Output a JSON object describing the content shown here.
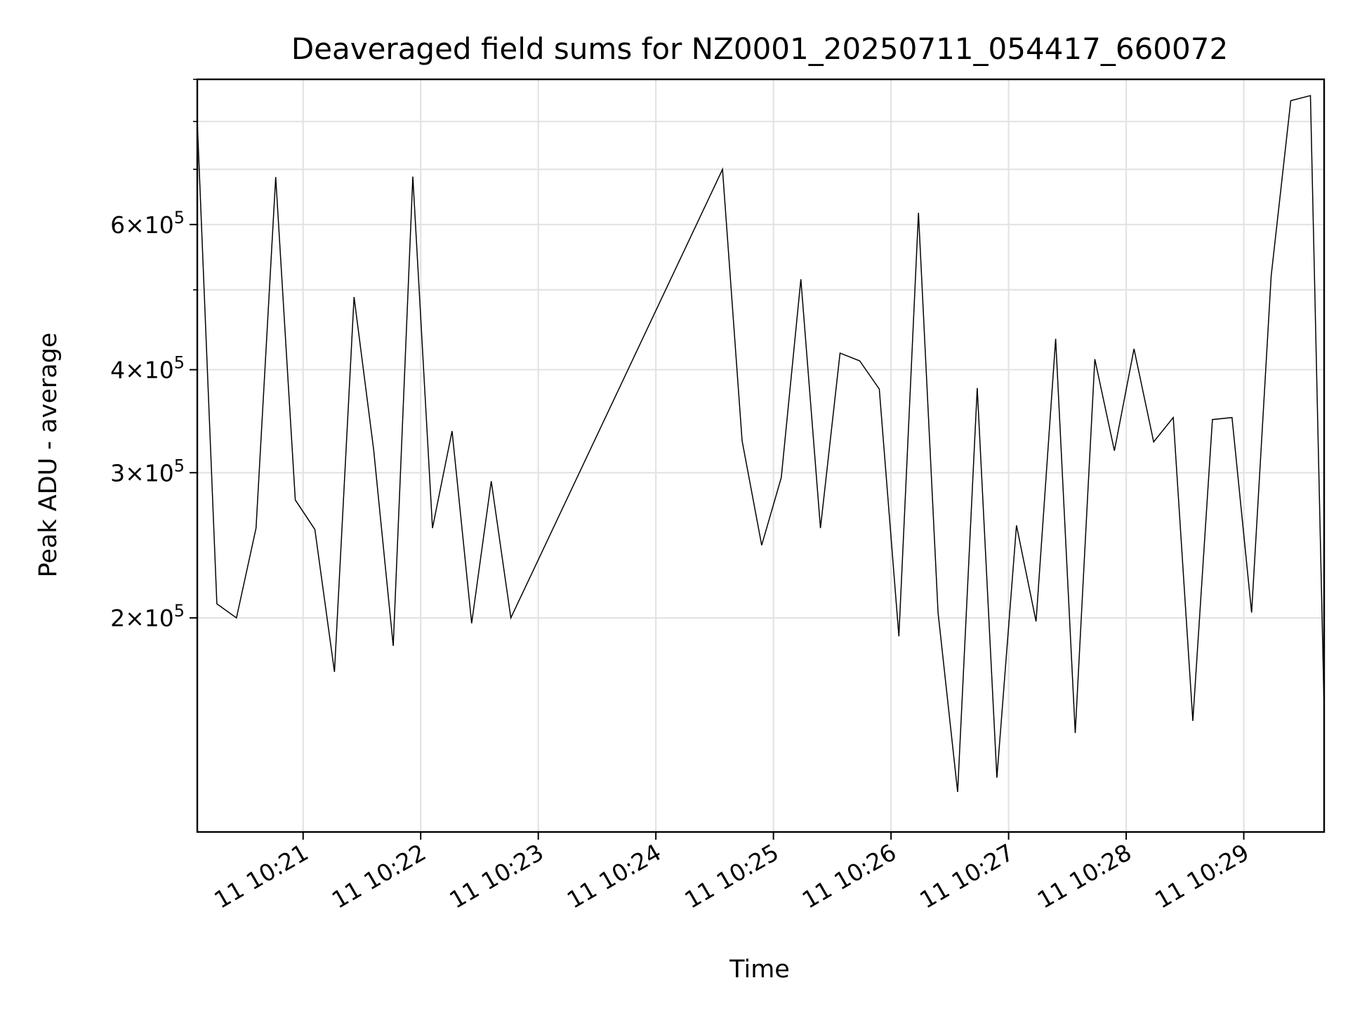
{
  "chart_data": {
    "type": "line",
    "title": "Deaveraged field sums for NZ0001_20250711_054417_660072",
    "xlabel": "Time",
    "ylabel": "Peak ADU - average",
    "y_scale": "log",
    "grid": true,
    "line_color": "#000000",
    "x_range": [
      "10:20:06",
      "10:29:41"
    ],
    "ylim": [
      110000,
      900000
    ],
    "x_ticks": [
      {
        "time": "10:21:00",
        "label": "11 10:21"
      },
      {
        "time": "10:22:00",
        "label": "11 10:22"
      },
      {
        "time": "10:23:00",
        "label": "11 10:23"
      },
      {
        "time": "10:24:00",
        "label": "11 10:24"
      },
      {
        "time": "10:25:00",
        "label": "11 10:25"
      },
      {
        "time": "10:26:00",
        "label": "11 10:26"
      },
      {
        "time": "10:27:00",
        "label": "11 10:27"
      },
      {
        "time": "10:28:00",
        "label": "11 10:28"
      },
      {
        "time": "10:29:00",
        "label": "11 10:29"
      }
    ],
    "y_ticks": [
      {
        "value": 200000,
        "base": "2×10",
        "exp": "5"
      },
      {
        "value": 300000,
        "base": "3×10",
        "exp": "5"
      },
      {
        "value": 400000,
        "base": "4×10",
        "exp": "5"
      },
      {
        "value": 600000,
        "base": "6×10",
        "exp": "5"
      }
    ],
    "y_minor_ticks": [
      500000,
      700000,
      800000,
      900000
    ],
    "series": [
      {
        "x": [
          "10:20:06",
          "10:20:16",
          "10:20:26",
          "10:20:36",
          "10:20:46",
          "10:20:56",
          "10:21:06",
          "10:21:16",
          "10:21:26",
          "10:21:36",
          "10:21:46",
          "10:21:56",
          "10:22:06",
          "10:22:16",
          "10:22:26",
          "10:22:36",
          "10:22:46",
          "10:24:34",
          "10:24:44",
          "10:24:54",
          "10:25:04",
          "10:25:14",
          "10:25:24",
          "10:25:34",
          "10:25:44",
          "10:25:54",
          "10:26:04",
          "10:26:14",
          "10:26:24",
          "10:26:34",
          "10:26:44",
          "10:26:54",
          "10:27:04",
          "10:27:14",
          "10:27:24",
          "10:27:34",
          "10:27:44",
          "10:27:54",
          "10:28:04",
          "10:28:14",
          "10:28:24",
          "10:28:34",
          "10:28:44",
          "10:28:54",
          "10:29:04",
          "10:29:14",
          "10:29:24",
          "10:29:34",
          "10:29:41"
        ],
        "y": [
          800000,
          208000,
          200000,
          257000,
          685000,
          278000,
          256000,
          172000,
          490000,
          320000,
          185000,
          686000,
          257000,
          337000,
          197000,
          293000,
          200000,
          700000,
          328000,
          245000,
          296000,
          515000,
          257000,
          419000,
          410000,
          379000,
          190000,
          620000,
          203000,
          123000,
          380000,
          128000,
          259000,
          198000,
          436000,
          145000,
          412000,
          319000,
          424000,
          327000,
          350000,
          150000,
          348000,
          350000,
          203000,
          520000,
          848000,
          860000,
          155000
        ]
      }
    ]
  }
}
